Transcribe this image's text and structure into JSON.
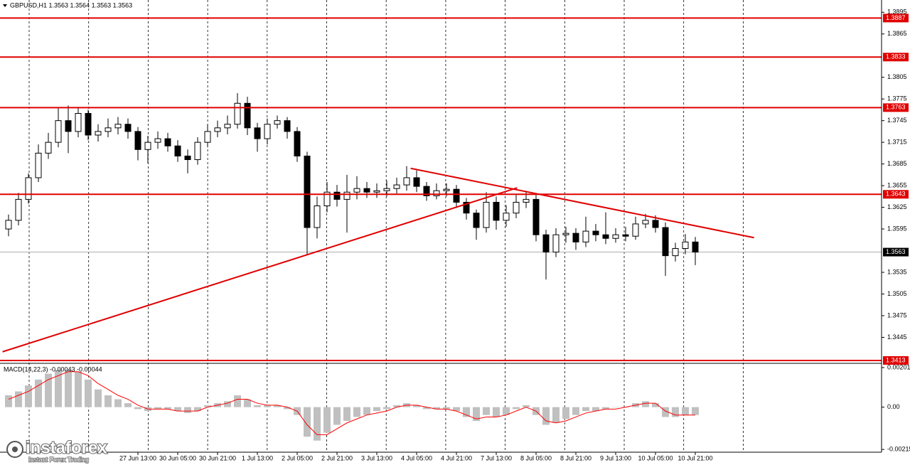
{
  "chart_data": [
    {
      "type": "candlestick",
      "title": "GBPUSD,H1  1.3563 1.3564 1.3563 1.3563",
      "categories": [
        null,
        null,
        null,
        null,
        null,
        null,
        null,
        null,
        null,
        null,
        null,
        null,
        null,
        "27 Jun 13:00",
        null,
        null,
        null,
        "30 Jun 05:00",
        null,
        null,
        null,
        "30 Jun 21:00",
        null,
        null,
        null,
        "1 Jul 13:00",
        null,
        null,
        null,
        "2 Jul 05:00",
        null,
        null,
        null,
        "2 Jul 21:00",
        null,
        null,
        null,
        "3 Jul 13:00",
        null,
        null,
        null,
        "4 Jul 05:00",
        null,
        null,
        null,
        "4 Jul 21:00",
        null,
        null,
        null,
        "7 Jul 13:00",
        null,
        null,
        null,
        "8 Jul 05:00",
        null,
        null,
        null,
        "8 Jul 21:00",
        null,
        null,
        null,
        "9 Jul 13:00",
        null,
        null,
        null,
        "10 Jul 05:00",
        null,
        null,
        null,
        "10 Jul 21:00"
      ],
      "open": [
        1.3595,
        1.3607,
        1.3636,
        1.3666,
        1.37,
        1.3715,
        1.3745,
        1.373,
        1.3755,
        1.3725,
        1.373,
        1.3735,
        1.374,
        1.373,
        1.3705,
        1.3715,
        1.372,
        1.371,
        1.3696,
        1.3691,
        1.3715,
        1.373,
        1.3735,
        1.374,
        1.3769,
        1.3735,
        1.372,
        1.374,
        1.3745,
        1.373,
        1.3696,
        1.3597,
        1.3627,
        1.3646,
        1.3636,
        1.3646,
        1.3651,
        1.3646,
        1.3648,
        1.3651,
        1.3656,
        1.3666,
        1.3654,
        1.3641,
        1.3648,
        1.365,
        1.3632,
        1.3617,
        1.3597,
        1.3632,
        1.3607,
        1.3617,
        1.3632,
        1.3636,
        1.3587,
        1.3563,
        1.3587,
        1.3589,
        1.3577,
        1.3592,
        1.3587,
        1.3582,
        1.3587,
        1.3585,
        1.3602,
        1.3607,
        1.3597,
        1.3558,
        1.3568,
        1.3577
      ],
      "high": [
        1.3615,
        1.3645,
        1.3672,
        1.3712,
        1.3728,
        1.3762,
        1.3766,
        1.3764,
        1.376,
        1.374,
        1.3748,
        1.375,
        1.3748,
        1.3736,
        1.3724,
        1.373,
        1.3728,
        1.3718,
        1.3705,
        1.3722,
        1.374,
        1.3745,
        1.3752,
        1.3783,
        1.3778,
        1.3742,
        1.3748,
        1.3752,
        1.375,
        1.3736,
        1.3702,
        1.364,
        1.366,
        1.3656,
        1.367,
        1.3668,
        1.366,
        1.3658,
        1.3662,
        1.3666,
        1.3682,
        1.3676,
        1.366,
        1.3658,
        1.3658,
        1.3656,
        1.3638,
        1.3622,
        1.3646,
        1.364,
        1.3628,
        1.3642,
        1.3648,
        1.3642,
        1.3594,
        1.3596,
        1.3598,
        1.3596,
        1.3612,
        1.3602,
        1.3618,
        1.3596,
        1.3598,
        1.3612,
        1.3616,
        1.3614,
        1.3604,
        1.3576,
        1.3588,
        1.3584
      ],
      "low": [
        1.3585,
        1.36,
        1.363,
        1.366,
        1.3692,
        1.3708,
        1.37,
        1.3722,
        1.3718,
        1.3716,
        1.3722,
        1.3726,
        1.372,
        1.369,
        1.3686,
        1.3706,
        1.3702,
        1.3688,
        1.3672,
        1.3684,
        1.3708,
        1.3722,
        1.3726,
        1.3734,
        1.3725,
        1.3702,
        1.3712,
        1.3734,
        1.372,
        1.3688,
        1.356,
        1.3582,
        1.3618,
        1.3626,
        1.359,
        1.3636,
        1.3638,
        1.3638,
        1.364,
        1.3644,
        1.3648,
        1.3646,
        1.3634,
        1.3636,
        1.364,
        1.3624,
        1.3608,
        1.358,
        1.359,
        1.3594,
        1.3598,
        1.361,
        1.3624,
        1.3578,
        1.3525,
        1.3556,
        1.3576,
        1.3566,
        1.357,
        1.3578,
        1.3574,
        1.3576,
        1.3578,
        1.358,
        1.3596,
        1.359,
        1.353,
        1.355,
        1.356,
        1.3545
      ],
      "close": [
        1.3607,
        1.3636,
        1.3666,
        1.37,
        1.3715,
        1.3745,
        1.373,
        1.3755,
        1.3725,
        1.373,
        1.3735,
        1.374,
        1.373,
        1.3705,
        1.3715,
        1.372,
        1.371,
        1.3696,
        1.3691,
        1.3715,
        1.373,
        1.3735,
        1.374,
        1.3769,
        1.3735,
        1.372,
        1.374,
        1.3745,
        1.373,
        1.3696,
        1.3597,
        1.3627,
        1.3646,
        1.3636,
        1.3646,
        1.3651,
        1.3646,
        1.3648,
        1.3651,
        1.3656,
        1.3666,
        1.3654,
        1.3641,
        1.3648,
        1.365,
        1.3632,
        1.3617,
        1.3597,
        1.3632,
        1.3607,
        1.3617,
        1.3632,
        1.3636,
        1.3587,
        1.3563,
        1.3587,
        1.3589,
        1.3577,
        1.3592,
        1.3587,
        1.3582,
        1.3587,
        1.3585,
        1.3602,
        1.3607,
        1.3597,
        1.3558,
        1.3568,
        1.3577,
        1.3563
      ],
      "up_color": "#ffffff",
      "down_color": "#000000",
      "ylim": [
        1.341,
        1.3912
      ],
      "yticks": [
        1.3895,
        1.3865,
        1.3805,
        1.3775,
        1.3745,
        1.3715,
        1.3685,
        1.3655,
        1.3625,
        1.3595,
        1.3535,
        1.3505,
        1.3475,
        1.3445
      ],
      "levels": [
        1.3887,
        1.3833,
        1.3763,
        1.3643,
        1.3413
      ],
      "level_color": "#e00000",
      "last_price": 1.3563,
      "trendlines": [
        {
          "x": [
            -0.6,
            51.1
          ],
          "y": [
            1.3425,
            1.3652
          ]
        },
        {
          "x": [
            40.4,
            74.9
          ],
          "y": [
            1.3679,
            1.3583
          ]
        }
      ],
      "trendline_color": "#e00000"
    },
    {
      "type": "macd",
      "title": "MACD(14,22,3) -0.00043 -0.00044",
      "values": [
        0.0006,
        0.0008,
        0.0011,
        0.0014,
        0.0017,
        0.0019,
        0.0019,
        0.0018,
        0.0014,
        0.0009,
        0.0006,
        0.0004,
        0.0002,
        -0.0001,
        -0.0002,
        -0.0001,
        -0.0001,
        -0.0002,
        -0.0003,
        -0.0002,
        0.0001,
        0.0002,
        0.0003,
        0.0006,
        0.0004,
        0.0001,
        0.0001,
        0.0001,
        -0.0001,
        -0.0004,
        -0.0015,
        -0.0017,
        -0.0013,
        -0.0009,
        -0.0007,
        -0.0005,
        -0.0004,
        -0.0002,
        -0.0001,
        0.0001,
        0.0002,
        0.0001,
        -0.0001,
        -0.0001,
        -0.0001,
        -0.0002,
        -0.0005,
        -0.0007,
        -0.0004,
        -0.0005,
        -0.0004,
        -0.0001,
        0.0001,
        -0.0004,
        -0.0009,
        -0.0008,
        -0.0006,
        -0.0004,
        -0.0002,
        -0.0002,
        -0.0001,
        0,
        0,
        0.0002,
        0.0003,
        0.0002,
        -0.0005,
        -0.0005,
        -0.0004,
        -0.0004
      ],
      "signal": [
        0.0004,
        0.0006,
        0.0008,
        0.0011,
        0.0014,
        0.0016,
        0.0018,
        0.0018,
        0.0016,
        0.0012,
        0.0009,
        0.0006,
        0.0004,
        0.0001,
        -0.0001,
        -0.0001,
        -0.0001,
        -0.0002,
        -0.0002,
        -0.0002,
        0,
        0.0001,
        0.0002,
        0.0004,
        0.0004,
        0.0002,
        0.0001,
        0.0001,
        0,
        -0.0002,
        -0.0009,
        -0.0014,
        -0.0014,
        -0.0011,
        -0.0008,
        -0.0006,
        -0.0004,
        -0.0003,
        -0.0002,
        0,
        0.0001,
        0.0001,
        0,
        -0.0001,
        -0.0001,
        -0.0002,
        -0.0004,
        -0.0006,
        -0.0005,
        -0.0005,
        -0.0004,
        -0.0002,
        0,
        -0.0002,
        -0.0007,
        -0.0008,
        -0.0007,
        -0.0005,
        -0.0003,
        -0.0002,
        -0.0001,
        -0.0001,
        0,
        0.0001,
        0.0002,
        0.0002,
        -0.0002,
        -0.0004,
        -0.0004,
        -0.0004
      ],
      "color": "#c0c0c0",
      "signal_color": "#ff0000",
      "ylim": [
        -0.00229,
        0.00219
      ],
      "yticks": [
        0.00201,
        {
          "value": 0,
          "label": "0.00"
        },
        -0.00215
      ]
    }
  ],
  "watermark": {
    "brand": "instaforex",
    "tagline": "Instant Forex Trading"
  }
}
